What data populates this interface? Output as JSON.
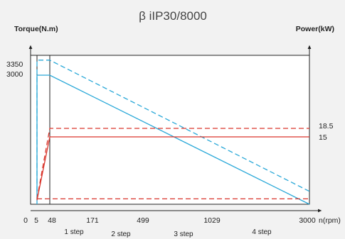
{
  "chart_data": {
    "type": "line",
    "title": "β iIP30/8000",
    "left_axis_label": "Torque(N.m)",
    "right_axis_label": "Power(kW)",
    "xlabel": "n(rpm)",
    "x_ticks": [
      "0",
      "5",
      "48",
      "171",
      "499",
      "1029",
      "3000"
    ],
    "x_tick_values": [
      0,
      5,
      48,
      171,
      499,
      1029,
      3000
    ],
    "left_ticks": [
      "3350",
      "3000"
    ],
    "right_ticks": [
      "18.5",
      "15"
    ],
    "steps": [
      "1 step",
      "2 step",
      "3 step",
      "4 step"
    ],
    "colors": {
      "torque": "#29a8d8",
      "power": "#d9342b",
      "frame": "#222222"
    },
    "series": [
      {
        "quantity": "torque",
        "style": "solid",
        "points": [
          [
            5,
            0
          ],
          [
            5,
            3000
          ],
          [
            48,
            3000
          ],
          [
            3000,
            0
          ]
        ]
      },
      {
        "quantity": "torque",
        "style": "dashed",
        "points": [
          [
            5,
            300
          ],
          [
            5,
            3350
          ],
          [
            48,
            3350
          ],
          [
            3000,
            300
          ]
        ]
      },
      {
        "quantity": "power",
        "style": "solid",
        "points": [
          [
            5,
            0.9
          ],
          [
            48,
            15
          ],
          [
            3000,
            15
          ]
        ]
      },
      {
        "quantity": "power",
        "style": "dashed",
        "points": [
          [
            5,
            1.2
          ],
          [
            48,
            18.5
          ],
          [
            3000,
            18.5
          ]
        ]
      },
      {
        "quantity": "power",
        "style": "dashed",
        "points": [
          [
            5,
            1.2
          ],
          [
            3000,
            1.2
          ]
        ]
      }
    ]
  }
}
